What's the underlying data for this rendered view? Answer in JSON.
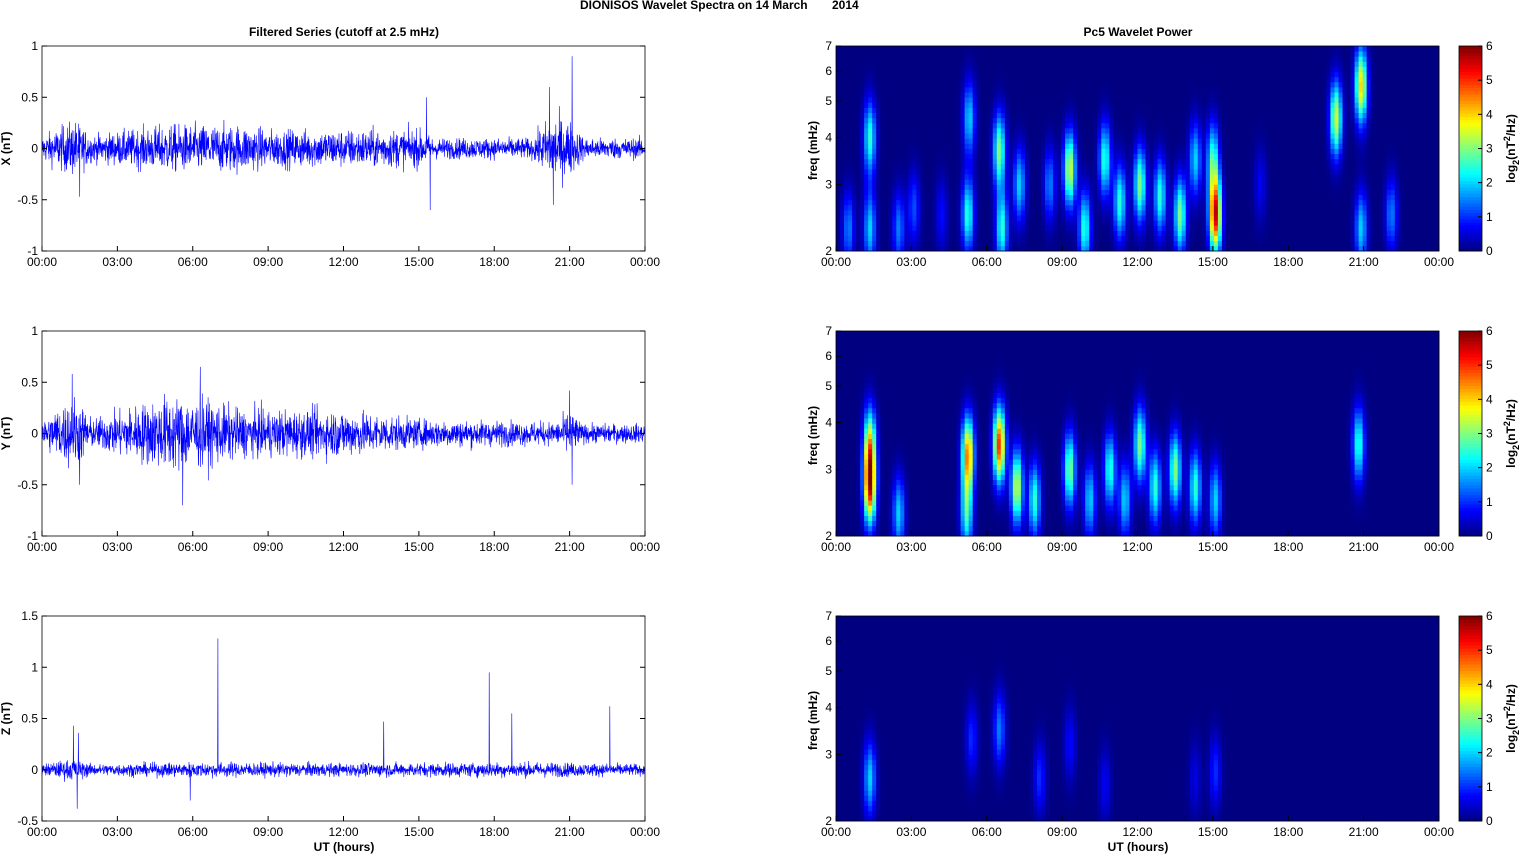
{
  "chart_data": {
    "type": "line+heatmap",
    "title": "DIONISOS Wavelet Spectra on 14 March",
    "year": "2014",
    "left_title": "Filtered Series (cutoff at 2.5 mHz)",
    "right_title": "Pc5 Wavelet Power",
    "xlabel": "UT (hours)",
    "x_ticks": [
      "00:00",
      "03:00",
      "06:00",
      "09:00",
      "12:00",
      "15:00",
      "18:00",
      "21:00",
      "00:00"
    ],
    "xlim_hours": [
      0,
      24
    ],
    "freq_label": "freq (mHz)",
    "freq_ticks": [
      "2",
      "3",
      "4",
      "5",
      "6",
      "7"
    ],
    "freq_lim": [
      2,
      7
    ],
    "colorbar": {
      "label": "log2(nT2/Hz)",
      "label_base": "log",
      "label_sub": "2",
      "label_mid": "(nT",
      "label_sup": "2",
      "label_end": "/Hz)",
      "ticks": [
        "0",
        "1",
        "2",
        "3",
        "4",
        "5",
        "6"
      ],
      "lim": [
        0,
        6
      ],
      "colormap": "jet"
    },
    "series": [
      {
        "name": "X",
        "ylabel": "X (nT)",
        "yticks": [
          "-1",
          "-0.5",
          "0",
          "0.5",
          "1"
        ],
        "ylim": [
          -1,
          1
        ],
        "color": "#0000ff",
        "envelope": [
          [
            0,
            0.13
          ],
          [
            1.3,
            0.3
          ],
          [
            2,
            0.14
          ],
          [
            5,
            0.25
          ],
          [
            8,
            0.25
          ],
          [
            9,
            0.2
          ],
          [
            12,
            0.2
          ],
          [
            15,
            0.2
          ],
          [
            15.6,
            0.11
          ],
          [
            19.5,
            0.11
          ],
          [
            20.3,
            0.35
          ],
          [
            21,
            0.3
          ],
          [
            21.6,
            0.11
          ],
          [
            24,
            0.11
          ]
        ],
        "spikes": [
          [
            15.3,
            0.5
          ],
          [
            15.45,
            -0.6
          ],
          [
            21.1,
            0.9
          ],
          [
            20.2,
            0.6
          ],
          [
            20.35,
            -0.55
          ],
          [
            1.5,
            -0.47
          ]
        ],
        "wavelet": [
          [
            0.5,
            2.3,
            1.5
          ],
          [
            1.35,
            4.0,
            2.5
          ],
          [
            1.35,
            2.3,
            2.0
          ],
          [
            2.5,
            2.3,
            1.5
          ],
          [
            3.1,
            2.6,
            1.2
          ],
          [
            4.2,
            2.5,
            0.8
          ],
          [
            5.25,
            2.5,
            2.5
          ],
          [
            5.3,
            4.5,
            2.0
          ],
          [
            6.5,
            3.7,
            3.0
          ],
          [
            6.6,
            2.3,
            2.5
          ],
          [
            7.3,
            3.0,
            2.0
          ],
          [
            8.5,
            3.0,
            1.5
          ],
          [
            9.3,
            3.3,
            3.5
          ],
          [
            9.9,
            2.3,
            2.5
          ],
          [
            10.7,
            3.5,
            2.5
          ],
          [
            11.3,
            2.7,
            2.5
          ],
          [
            12.1,
            3.0,
            3.0
          ],
          [
            12.9,
            2.8,
            2.5
          ],
          [
            13.7,
            2.5,
            3.0
          ],
          [
            14.3,
            3.5,
            2.0
          ],
          [
            15.1,
            2.5,
            5.5
          ],
          [
            15.0,
            3.5,
            2.5
          ],
          [
            16.9,
            3.0,
            0.7
          ],
          [
            19.9,
            4.5,
            3.5
          ],
          [
            20.9,
            5.5,
            4.0
          ],
          [
            20.9,
            2.3,
            2.0
          ],
          [
            22.1,
            2.5,
            1.5
          ]
        ]
      },
      {
        "name": "Y",
        "ylabel": "Y (nT)",
        "yticks": [
          "-1",
          "-0.5",
          "0",
          "0.5",
          "1"
        ],
        "ylim": [
          -1,
          1
        ],
        "color": "#0000ff",
        "envelope": [
          [
            0,
            0.14
          ],
          [
            1.3,
            0.4
          ],
          [
            2,
            0.15
          ],
          [
            5,
            0.4
          ],
          [
            6.5,
            0.35
          ],
          [
            8,
            0.25
          ],
          [
            12,
            0.25
          ],
          [
            15,
            0.15
          ],
          [
            20.5,
            0.12
          ],
          [
            21,
            0.25
          ],
          [
            21.5,
            0.1
          ],
          [
            24,
            0.1
          ]
        ],
        "spikes": [
          [
            6.3,
            0.65
          ],
          [
            5.6,
            -0.7
          ],
          [
            1.5,
            -0.5
          ],
          [
            1.2,
            0.58
          ],
          [
            21.0,
            0.42
          ],
          [
            21.1,
            -0.5
          ]
        ],
        "wavelet": [
          [
            1.35,
            2.7,
            5.0
          ],
          [
            1.35,
            3.5,
            3.5
          ],
          [
            2.5,
            2.3,
            2.0
          ],
          [
            5.25,
            3.3,
            4.5
          ],
          [
            5.2,
            2.3,
            2.5
          ],
          [
            6.5,
            3.5,
            5.0
          ],
          [
            7.2,
            2.7,
            3.5
          ],
          [
            7.9,
            2.5,
            2.5
          ],
          [
            9.3,
            3.0,
            3.0
          ],
          [
            10.1,
            2.5,
            2.0
          ],
          [
            10.9,
            3.0,
            2.5
          ],
          [
            11.5,
            2.5,
            2.0
          ],
          [
            12.1,
            3.5,
            3.0
          ],
          [
            12.7,
            2.7,
            2.5
          ],
          [
            13.5,
            3.0,
            3.0
          ],
          [
            14.3,
            2.7,
            2.5
          ],
          [
            15.1,
            2.5,
            2.0
          ],
          [
            20.8,
            3.5,
            2.5
          ]
        ]
      },
      {
        "name": "Z",
        "ylabel": "Z (nT)",
        "yticks": [
          "-0.5",
          "0",
          "0.5",
          "1",
          "1.5"
        ],
        "ylim": [
          -0.5,
          1.5
        ],
        "color": "#0000ff",
        "envelope": [
          [
            0,
            0.06
          ],
          [
            1.3,
            0.12
          ],
          [
            2,
            0.06
          ],
          [
            6,
            0.08
          ],
          [
            12,
            0.07
          ],
          [
            20,
            0.08
          ],
          [
            24,
            0.06
          ]
        ],
        "spikes": [
          [
            7.0,
            1.28
          ],
          [
            17.8,
            0.95
          ],
          [
            18.7,
            0.55
          ],
          [
            22.6,
            0.62
          ],
          [
            1.4,
            -0.38
          ],
          [
            1.25,
            0.43
          ],
          [
            13.6,
            0.47
          ],
          [
            5.9,
            -0.3
          ],
          [
            1.45,
            0.36
          ]
        ],
        "wavelet": [
          [
            1.35,
            2.6,
            2.0
          ],
          [
            5.4,
            3.3,
            1.0
          ],
          [
            6.5,
            3.5,
            1.5
          ],
          [
            8.1,
            2.6,
            1.0
          ],
          [
            9.3,
            3.2,
            0.8
          ],
          [
            10.7,
            2.5,
            0.7
          ],
          [
            14.3,
            2.6,
            0.6
          ],
          [
            15.1,
            2.7,
            1.0
          ]
        ]
      }
    ]
  }
}
